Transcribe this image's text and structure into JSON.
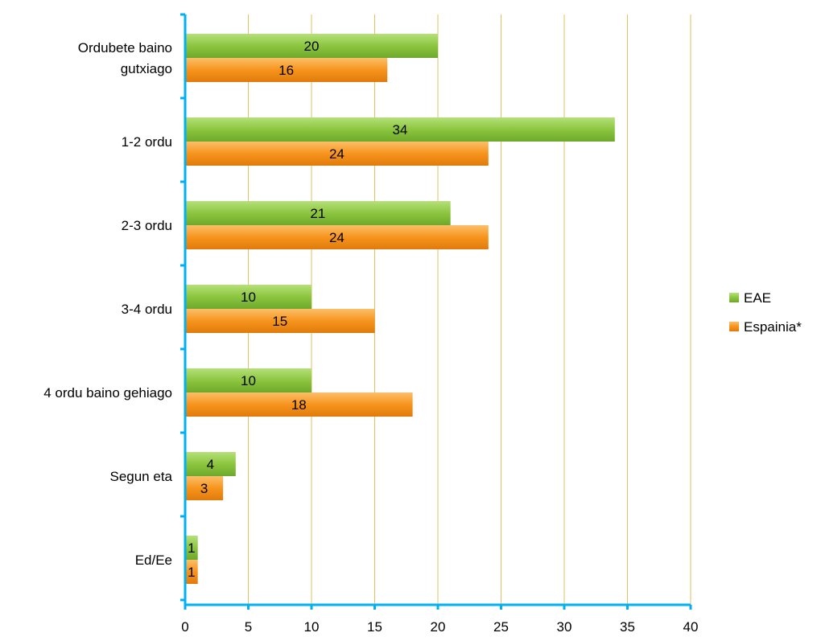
{
  "chart_data": {
    "type": "bar",
    "orientation": "horizontal",
    "title": "",
    "xlabel": "",
    "ylabel": "",
    "categories": [
      [
        "Ordubete baino",
        "gutxiago"
      ],
      [
        "1-2 ordu"
      ],
      [
        "2-3 ordu"
      ],
      [
        "3-4 ordu"
      ],
      [
        "4 ordu baino gehiago"
      ],
      [
        "Segun eta"
      ],
      [
        "Ed/Ee"
      ]
    ],
    "series": [
      {
        "name": "EAE",
        "values": [
          20,
          34,
          21,
          10,
          10,
          4,
          1
        ]
      },
      {
        "name": "Espainia*",
        "values": [
          16,
          24,
          24,
          15,
          18,
          3,
          1
        ]
      }
    ],
    "xlim": [
      0,
      40
    ],
    "xticks": [
      0,
      5,
      10,
      15,
      20,
      25,
      30,
      35,
      40
    ],
    "grid": "vertical",
    "legend_position": "right",
    "colors": {
      "EAE": "#8cc63f",
      "Espainia*": "#f7941d",
      "axis": "#00b0f0",
      "grid": "#e0c060"
    }
  }
}
